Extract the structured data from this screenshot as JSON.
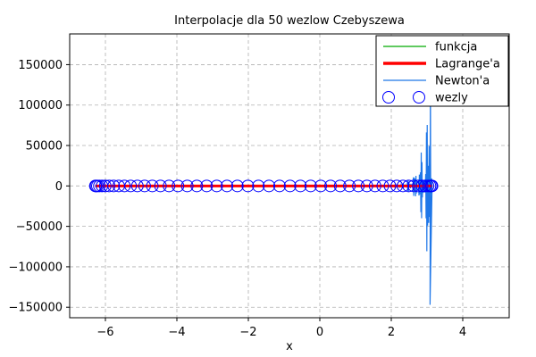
{
  "chart_data": {
    "type": "line",
    "title": "Interpolacje dla 50 wezlow Czebyszewa",
    "xlabel": "x",
    "ylabel": "",
    "xlim": [
      -7,
      5.3
    ],
    "ylim": [
      -163000,
      188000
    ],
    "xticks": [
      -6,
      -4,
      -2,
      0,
      2,
      4
    ],
    "yticks": [
      -150000,
      -100000,
      -50000,
      0,
      50000,
      100000,
      150000
    ],
    "xtick_labels": [
      "−6",
      "−4",
      "−2",
      "0",
      "2",
      "4"
    ],
    "ytick_labels": [
      "−150000",
      "−100000",
      "−50000",
      "0",
      "50000",
      "100000",
      "150000"
    ],
    "grid": true,
    "grid_style": "dashed",
    "legend_position": "top-right",
    "node_range": [
      -6.283,
      3.1416
    ],
    "node_count": 50,
    "series": [
      {
        "name": "funkcja",
        "color": "#00aa00",
        "style": "line",
        "y_range": [
          -1,
          1
        ]
      },
      {
        "name": "Lagrange'a",
        "color": "#ff0000",
        "style": "thick-line",
        "y_range": [
          -1,
          1
        ]
      },
      {
        "name": "Newton'a",
        "color": "#1f77e8",
        "style": "line",
        "envelope": [
          [
            2.0,
            0
          ],
          [
            2.3,
            3000
          ],
          [
            2.5,
            8000
          ],
          [
            2.7,
            20000
          ],
          [
            2.85,
            45000
          ],
          [
            2.95,
            70000
          ],
          [
            3.05,
            105000
          ],
          [
            3.1,
            150000
          ],
          [
            3.12,
            60000
          ],
          [
            3.14,
            0
          ]
        ],
        "min_value": -147000,
        "max_value": 150000
      },
      {
        "name": "wezly",
        "color": "#0000ff",
        "style": "circle-markers"
      }
    ]
  }
}
